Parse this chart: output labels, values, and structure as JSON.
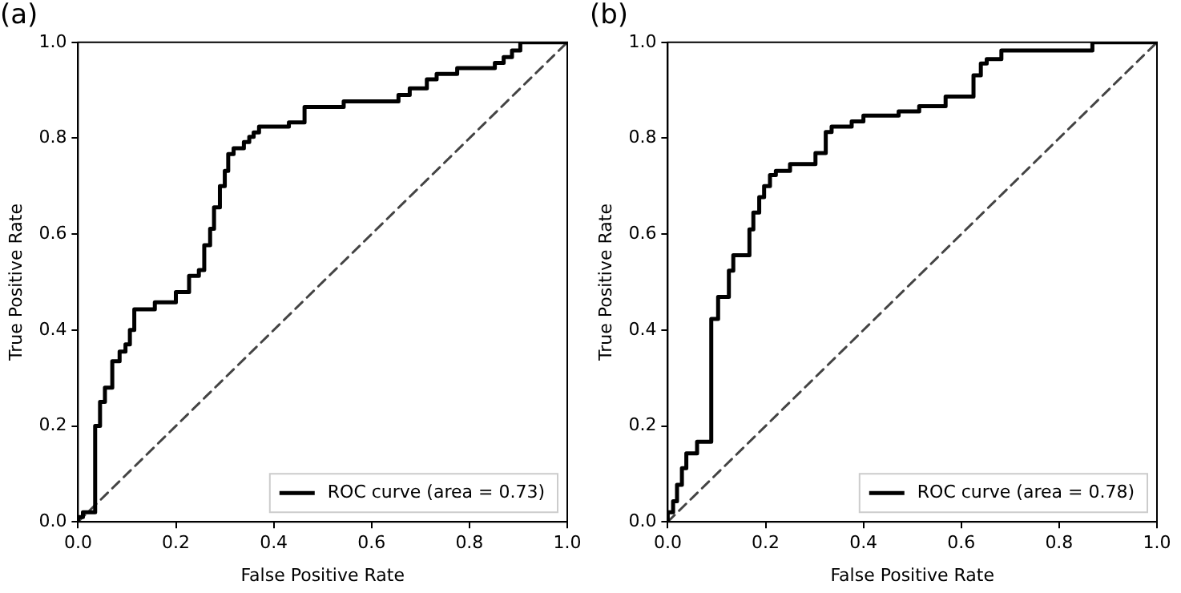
{
  "chart_data": [
    {
      "type": "step",
      "title": "(a)",
      "xlabel": "False Positive Rate",
      "ylabel": "True Positive Rate",
      "xlim": [
        0,
        1
      ],
      "ylim": [
        0,
        1
      ],
      "xticks": [
        {
          "value": 0,
          "label": "0.0"
        },
        {
          "value": 0.2,
          "label": "0.2"
        },
        {
          "value": 0.4,
          "label": "0.4"
        },
        {
          "value": 0.6,
          "label": "0.6"
        },
        {
          "value": 0.8,
          "label": "0.8"
        },
        {
          "value": 1,
          "label": "1.0"
        }
      ],
      "yticks": [
        {
          "value": 0,
          "label": "0.0"
        },
        {
          "value": 0.2,
          "label": "0.2"
        },
        {
          "value": 0.4,
          "label": "0.4"
        },
        {
          "value": 0.6,
          "label": "0.6"
        },
        {
          "value": 0.8,
          "label": "0.8"
        },
        {
          "value": 1,
          "label": "1.0"
        }
      ],
      "grid": false,
      "legend": "bottom right",
      "series": [
        {
          "name": "ROC curve (area = 0.73)",
          "color": "#000000",
          "x": [
            0,
            0.01,
            0.02,
            0.035,
            0.035,
            0.045,
            0.055,
            0.07,
            0.085,
            0.097,
            0.106,
            0.115,
            0.157,
            0.2,
            0.227,
            0.247,
            0.258,
            0.27,
            0.278,
            0.29,
            0.3,
            0.307,
            0.318,
            0.339,
            0.35,
            0.359,
            0.37,
            0.431,
            0.463,
            0.543,
            0.655,
            0.678,
            0.713,
            0.733,
            0.775,
            0.852,
            0.87,
            0.887,
            0.904,
            0.925,
            1.0
          ],
          "values": [
            0,
            0.01,
            0.02,
            0.02,
            0.16,
            0.2,
            0.25,
            0.28,
            0.335,
            0.355,
            0.37,
            0.4,
            0.443,
            0.458,
            0.479,
            0.513,
            0.525,
            0.577,
            0.611,
            0.656,
            0.7,
            0.732,
            0.767,
            0.779,
            0.792,
            0.803,
            0.812,
            0.824,
            0.833,
            0.865,
            0.877,
            0.89,
            0.904,
            0.923,
            0.934,
            0.946,
            0.957,
            0.969,
            0.983,
            1.0,
            1.0
          ]
        },
        {
          "type": "line",
          "color": "#444444",
          "line_style": "dashed",
          "x": [
            0,
            1
          ],
          "values": [
            0,
            1
          ]
        }
      ]
    },
    {
      "type": "step",
      "title": "(b)",
      "xlabel": "False Positive Rate",
      "ylabel": "True Positive Rate",
      "xlim": [
        0,
        1
      ],
      "ylim": [
        0,
        1
      ],
      "xticks": [
        {
          "value": 0,
          "label": "0.0"
        },
        {
          "value": 0.2,
          "label": "0.2"
        },
        {
          "value": 0.4,
          "label": "0.4"
        },
        {
          "value": 0.6,
          "label": "0.6"
        },
        {
          "value": 0.8,
          "label": "0.8"
        },
        {
          "value": 1,
          "label": "1.0"
        }
      ],
      "yticks": [
        {
          "value": 0,
          "label": "0.0"
        },
        {
          "value": 0.2,
          "label": "0.2"
        },
        {
          "value": 0.4,
          "label": "0.4"
        },
        {
          "value": 0.6,
          "label": "0.6"
        },
        {
          "value": 0.8,
          "label": "0.8"
        },
        {
          "value": 1,
          "label": "1.0"
        }
      ],
      "grid": false,
      "legend": "bottom right",
      "series": [
        {
          "name": "ROC curve (area = 0.78)",
          "color": "#000000",
          "x": [
            0,
            0.011,
            0.019,
            0.029,
            0.038,
            0.06,
            0.089,
            0.103,
            0.125,
            0.134,
            0.167,
            0.175,
            0.187,
            0.197,
            0.209,
            0.221,
            0.25,
            0.302,
            0.323,
            0.335,
            0.376,
            0.4,
            0.472,
            0.514,
            0.568,
            0.625,
            0.64,
            0.652,
            0.682,
            0.868,
            0.88,
            1.0
          ],
          "values": [
            0,
            0.02,
            0.043,
            0.077,
            0.112,
            0.143,
            0.167,
            0.423,
            0.469,
            0.524,
            0.556,
            0.61,
            0.645,
            0.677,
            0.7,
            0.723,
            0.732,
            0.746,
            0.769,
            0.813,
            0.824,
            0.835,
            0.847,
            0.856,
            0.867,
            0.887,
            0.931,
            0.956,
            0.965,
            0.983,
            1.0,
            1.0
          ]
        },
        {
          "type": "line",
          "color": "#444444",
          "line_style": "dashed",
          "x": [
            0,
            1
          ],
          "values": [
            0,
            1
          ]
        }
      ]
    }
  ]
}
